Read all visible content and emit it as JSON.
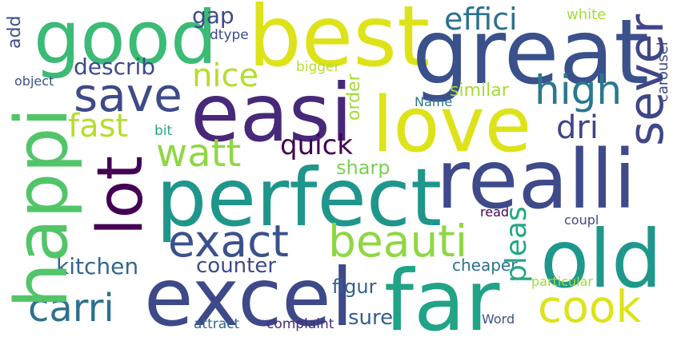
{
  "words": [
    {
      "id": "good",
      "text": "good",
      "color": "#3bbb75"
    },
    {
      "id": "best",
      "text": "best",
      "color": "#dde318"
    },
    {
      "id": "great",
      "text": "great",
      "color": "#3b518b"
    },
    {
      "id": "easi",
      "text": "easi",
      "color": "#482878"
    },
    {
      "id": "love",
      "text": "love",
      "color": "#dde318"
    },
    {
      "id": "realli",
      "text": "realli",
      "color": "#3e4a89"
    },
    {
      "id": "perfect",
      "text": "perfect",
      "color": "#1f968b"
    },
    {
      "id": "lot",
      "text": "lot",
      "color": "#440154"
    },
    {
      "id": "happi",
      "text": "happi",
      "color": "#52c569"
    },
    {
      "id": "excel",
      "text": "excel",
      "color": "#3e4989"
    },
    {
      "id": "far",
      "text": "far",
      "color": "#20a386"
    },
    {
      "id": "old",
      "text": "old",
      "color": "#1f988b"
    },
    {
      "id": "exact",
      "text": "exact",
      "color": "#404688"
    },
    {
      "id": "sever",
      "text": "sever",
      "color": "#3b518b"
    },
    {
      "id": "beauti",
      "text": "beauti",
      "color": "#8fd744"
    },
    {
      "id": "cook",
      "text": "cook",
      "color": "#dde318"
    },
    {
      "id": "save",
      "text": "save",
      "color": "#3e4a89"
    },
    {
      "id": "watt",
      "text": "watt",
      "color": "#8fd744"
    },
    {
      "id": "carri",
      "text": "carri",
      "color": "#2c728e"
    },
    {
      "id": "high",
      "text": "high",
      "color": "#2a788e"
    },
    {
      "id": "nice",
      "text": "nice",
      "color": "#b5de2b"
    },
    {
      "id": "effici",
      "text": "effici",
      "color": "#2c728e"
    },
    {
      "id": "fast",
      "text": "fast",
      "color": "#b5de2b"
    },
    {
      "id": "dri",
      "text": "dri",
      "color": "#404688"
    },
    {
      "id": "quick",
      "text": "quick",
      "color": "#440154"
    },
    {
      "id": "pleas",
      "text": "pleas",
      "color": "#22a884"
    },
    {
      "id": "describ",
      "text": "describ",
      "color": "#3e4a89"
    },
    {
      "id": "kitchen",
      "text": "kitchen",
      "color": "#31688e"
    },
    {
      "id": "counter",
      "text": "counter",
      "color": "#3e4a89"
    },
    {
      "id": "sharp",
      "text": "sharp",
      "color": "#7ad151"
    },
    {
      "id": "sure",
      "text": "sure",
      "color": "#35608d"
    },
    {
      "id": "figur",
      "text": "figur",
      "color": "#35608d"
    },
    {
      "id": "gap",
      "text": "gap",
      "color": "#3e4a89"
    },
    {
      "id": "order",
      "text": "order",
      "color": "#a5db36"
    },
    {
      "id": "similar",
      "text": "similar",
      "color": "#a5db36"
    },
    {
      "id": "cheaper",
      "text": "cheaper",
      "color": "#2c728e"
    },
    {
      "id": "add",
      "text": "add",
      "color": "#3b518b"
    },
    {
      "id": "white",
      "text": "white",
      "color": "#a5db36"
    },
    {
      "id": "carousel",
      "text": "carousel",
      "color": "#3e4a89"
    },
    {
      "id": "dtype",
      "text": "dtype",
      "color": "#3e4a89"
    },
    {
      "id": "bigger",
      "text": "bigger",
      "color": "#b5de2b"
    },
    {
      "id": "object",
      "text": "object",
      "color": "#3b518b"
    },
    {
      "id": "name",
      "text": "Name",
      "color": "#2a788e"
    },
    {
      "id": "bit",
      "text": "bit",
      "color": "#22a884"
    },
    {
      "id": "read",
      "text": "read",
      "color": "#440154"
    },
    {
      "id": "coupl",
      "text": "coupl",
      "color": "#3e4989"
    },
    {
      "id": "particular",
      "text": "particular",
      "color": "#a5db36"
    },
    {
      "id": "attract",
      "text": "attract",
      "color": "#31688e"
    },
    {
      "id": "complaint",
      "text": "complaint",
      "color": "#472d7b"
    },
    {
      "id": "word",
      "text": "Word",
      "color": "#3b518b"
    }
  ]
}
